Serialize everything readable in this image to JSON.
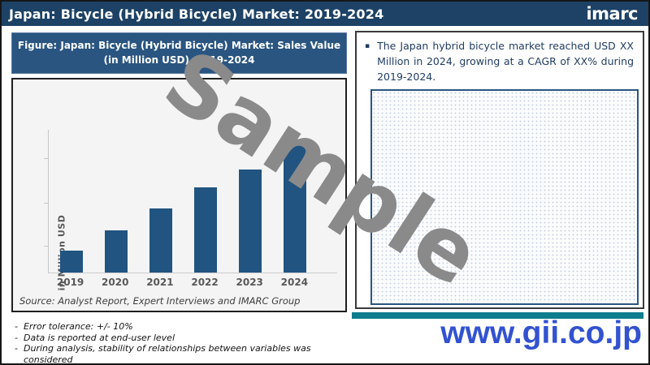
{
  "header": {
    "title": "Japan: Bicycle (Hybrid Bicycle) Market: 2019-2024",
    "logo": "imarc"
  },
  "figure": {
    "title_line1": "Figure: Japan: Bicycle (Hybrid Bicycle) Market: Sales Value",
    "title_line2": "(in Million USD), 2019-2024",
    "source": "Source: Analyst Report, Expert Interviews and IMARC Group"
  },
  "chart_data": {
    "type": "bar",
    "title": "Japan: Bicycle (Hybrid Bicycle) Market: Sales Value (in Million USD), 2019-2024",
    "categories": [
      "2019",
      "2020",
      "2021",
      "2022",
      "2023",
      "2024"
    ],
    "values_relative_pct_of_max": [
      17,
      33,
      50,
      66,
      80,
      100
    ],
    "values_note_as_shown": "numeric axis labels not shown (sample); bar heights read as percent of 2024 bar",
    "xlabel": "",
    "ylabel": "in Million USD",
    "grid": false,
    "legend": "none",
    "bar_color": "#215480"
  },
  "summary": {
    "bullet_marker": "▪",
    "bullet_text": "The Japan hybrid bicycle market reached USD XX Million in 2024, growing at a CAGR of XX% during 2019-2024."
  },
  "footnote_marker": "-",
  "footnotes": [
    "Error tolerance: +/- 10%",
    "Data is reported at end-user level",
    "During analysis, stability of relationships between variables was considered"
  ],
  "watermark": "Sample",
  "website": "www.gii.co.jp",
  "colors": {
    "header_bg": "#1d4266",
    "figure_title_bg": "#2a5580",
    "bar": "#215480",
    "teal_bar": "#0e7d8e",
    "website_link": "#3252d0",
    "watermark": "#8a8a8a"
  }
}
